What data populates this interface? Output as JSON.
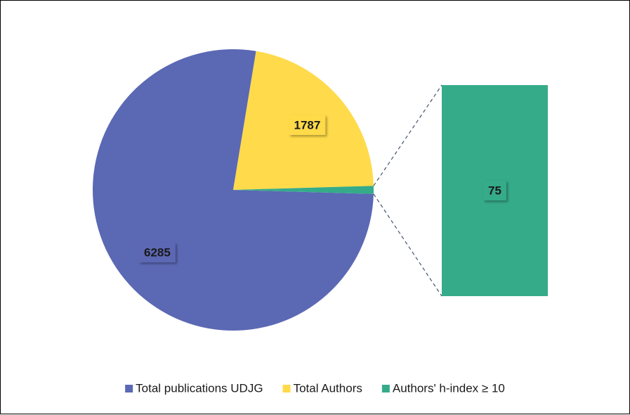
{
  "chart_data": {
    "type": "pie",
    "categories": [
      "Total publications UDJG",
      "Total Authors",
      "Authors' h-index ≥ 10"
    ],
    "values": [
      6285,
      1787,
      75
    ],
    "colors": [
      "#5b68b4",
      "#ffda4a",
      "#35ab8a"
    ],
    "legend": "bottom"
  }
}
